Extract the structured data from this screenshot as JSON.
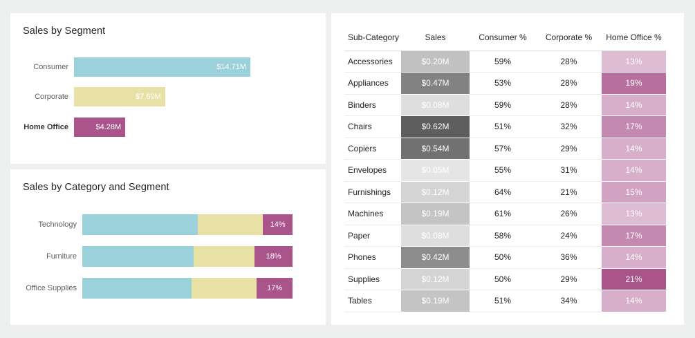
{
  "colors": {
    "consumer": "#9bd1db",
    "corporate": "#e8e1a6",
    "home_office": "#a9558c"
  },
  "chart_data": [
    {
      "type": "bar",
      "orientation": "horizontal",
      "title": "Sales by Segment",
      "categories": [
        "Consumer",
        "Corporate",
        "Home Office"
      ],
      "values": [
        14.71,
        7.6,
        4.28
      ],
      "data_labels": [
        "$14.71M",
        "$7.60M",
        "$4.28M"
      ],
      "unit": "$M",
      "highlighted": "Home Office"
    },
    {
      "type": "bar",
      "orientation": "horizontal",
      "stacked": "100%",
      "title": "Sales by Category and Segment",
      "categories": [
        "Technology",
        "Furniture",
        "Office Supplies"
      ],
      "series": [
        {
          "name": "Consumer",
          "values": [
            55,
            53,
            52
          ]
        },
        {
          "name": "Corporate",
          "values": [
            31,
            29,
            31
          ]
        },
        {
          "name": "Home Office",
          "values": [
            14,
            18,
            17
          ]
        }
      ],
      "data_labels": [
        "14%",
        "18%",
        "17%"
      ]
    },
    {
      "type": "table",
      "columns": [
        "Sub-Category",
        "Sales",
        "Consumer %",
        "Corporate %",
        "Home Office %"
      ],
      "rows": [
        {
          "name": "Accessories",
          "sales": "$0.20M",
          "sales_value": 0.2,
          "consumer": "59%",
          "corporate": "28%",
          "home": "13%",
          "home_value": 13
        },
        {
          "name": "Appliances",
          "sales": "$0.47M",
          "sales_value": 0.47,
          "consumer": "53%",
          "corporate": "28%",
          "home": "19%",
          "home_value": 19
        },
        {
          "name": "Binders",
          "sales": "$0.08M",
          "sales_value": 0.08,
          "consumer": "59%",
          "corporate": "28%",
          "home": "14%",
          "home_value": 14
        },
        {
          "name": "Chairs",
          "sales": "$0.62M",
          "sales_value": 0.62,
          "consumer": "51%",
          "corporate": "32%",
          "home": "17%",
          "home_value": 17
        },
        {
          "name": "Copiers",
          "sales": "$0.54M",
          "sales_value": 0.54,
          "consumer": "57%",
          "corporate": "29%",
          "home": "14%",
          "home_value": 14
        },
        {
          "name": "Envelopes",
          "sales": "$0.05M",
          "sales_value": 0.05,
          "consumer": "55%",
          "corporate": "31%",
          "home": "14%",
          "home_value": 14
        },
        {
          "name": "Furnishings",
          "sales": "$0.12M",
          "sales_value": 0.12,
          "consumer": "64%",
          "corporate": "21%",
          "home": "15%",
          "home_value": 15
        },
        {
          "name": "Machines",
          "sales": "$0.19M",
          "sales_value": 0.19,
          "consumer": "61%",
          "corporate": "26%",
          "home": "13%",
          "home_value": 13
        },
        {
          "name": "Paper",
          "sales": "$0.08M",
          "sales_value": 0.08,
          "consumer": "58%",
          "corporate": "24%",
          "home": "17%",
          "home_value": 17
        },
        {
          "name": "Phones",
          "sales": "$0.42M",
          "sales_value": 0.42,
          "consumer": "50%",
          "corporate": "36%",
          "home": "14%",
          "home_value": 14
        },
        {
          "name": "Supplies",
          "sales": "$0.12M",
          "sales_value": 0.12,
          "consumer": "50%",
          "corporate": "29%",
          "home": "21%",
          "home_value": 21
        },
        {
          "name": "Tables",
          "sales": "$0.19M",
          "sales_value": 0.19,
          "consumer": "51%",
          "corporate": "34%",
          "home": "14%",
          "home_value": 14
        }
      ]
    }
  ]
}
